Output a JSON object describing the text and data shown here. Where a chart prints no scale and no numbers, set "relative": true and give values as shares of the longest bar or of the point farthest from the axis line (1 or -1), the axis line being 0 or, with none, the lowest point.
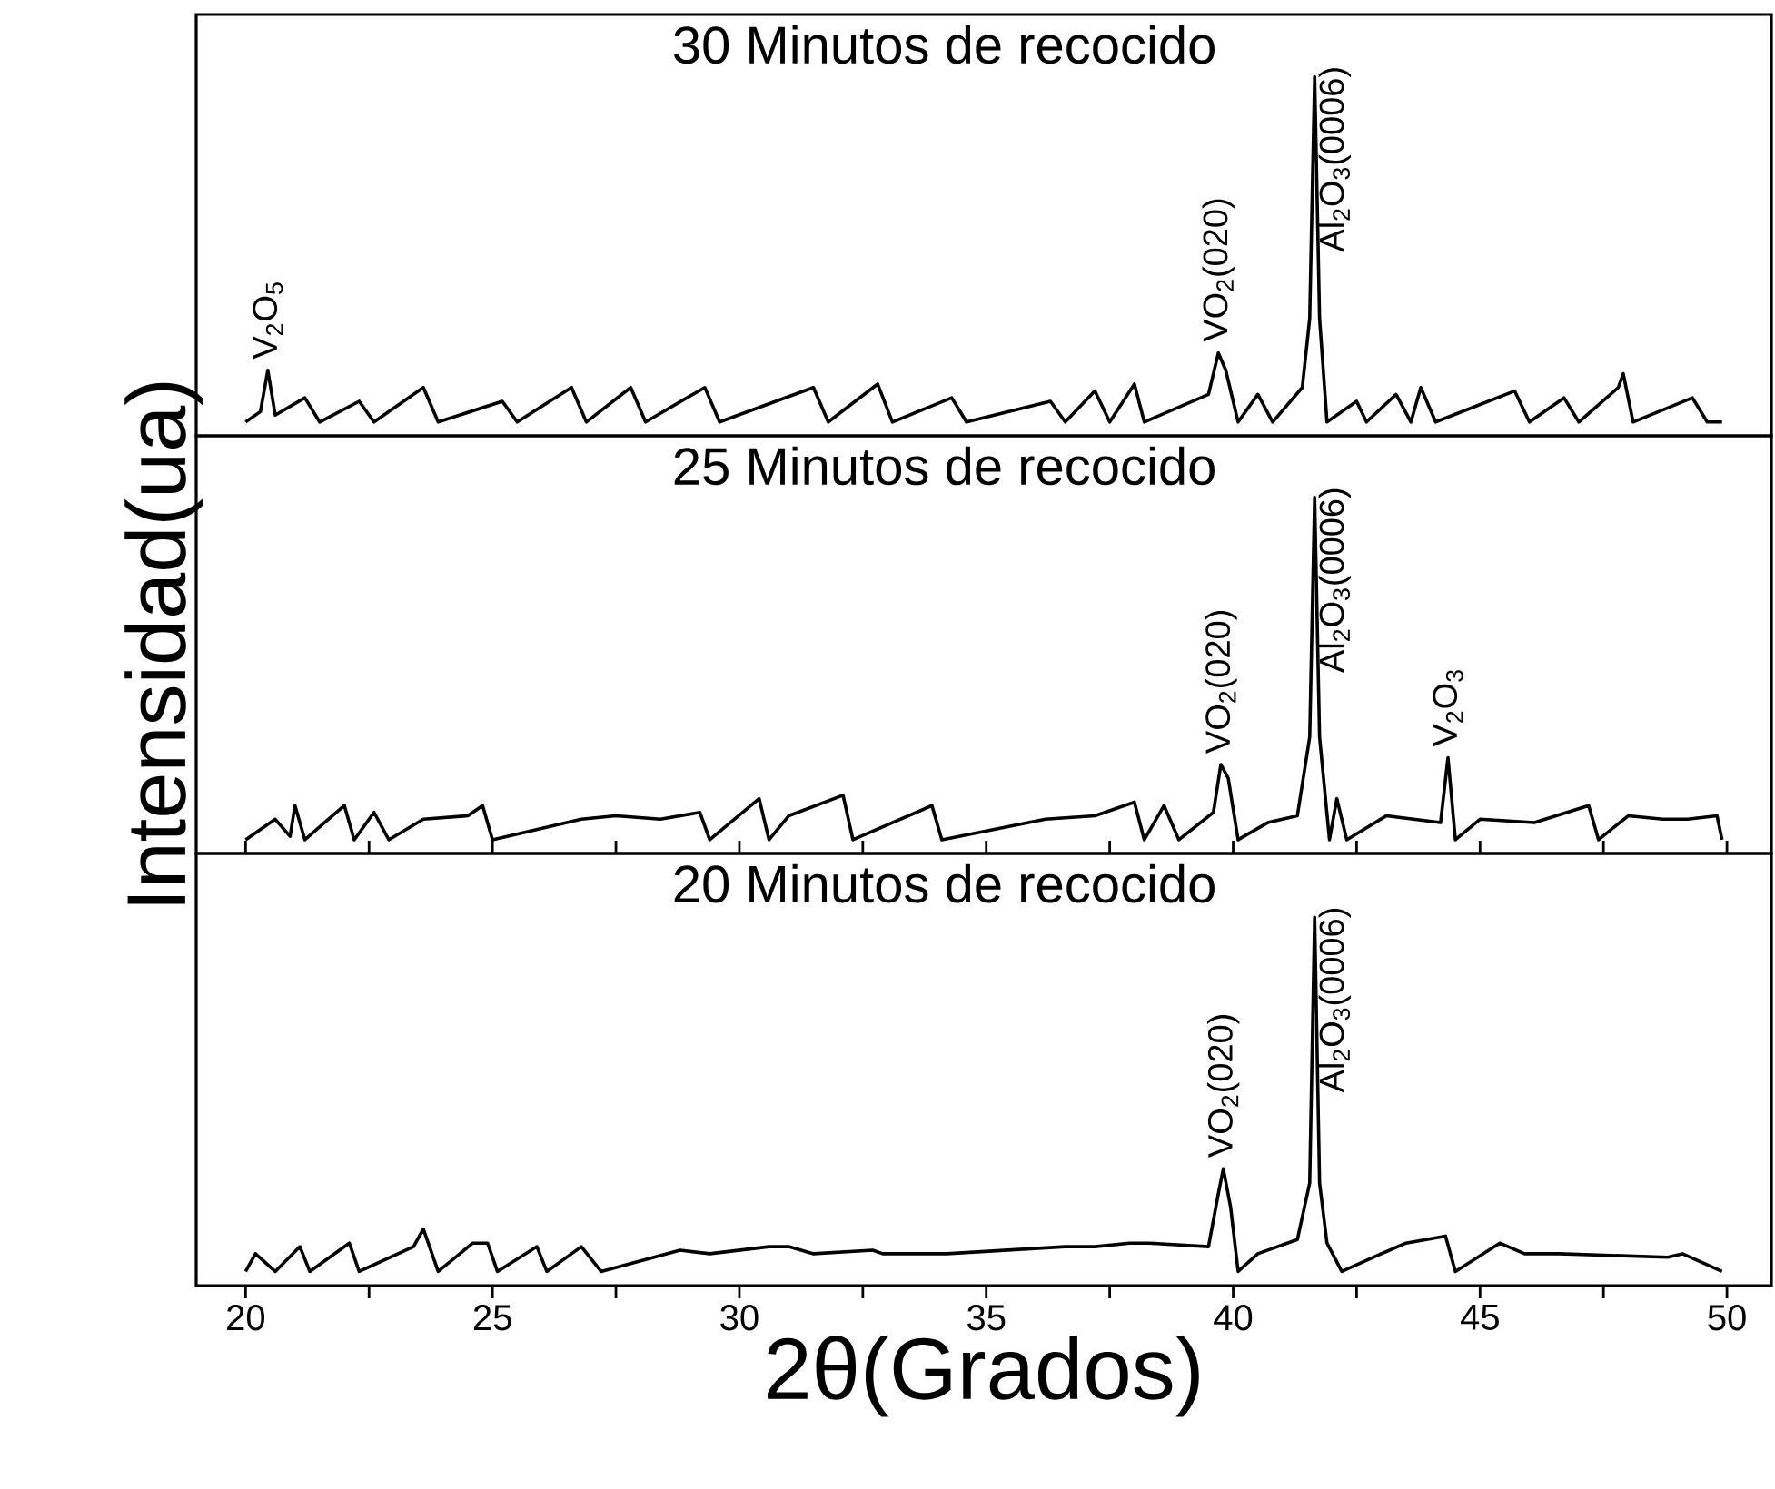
{
  "chart_data": [
    {
      "type": "line",
      "relative": true,
      "title": "30 Minutos de recocido",
      "color": "#000000",
      "xlim": [
        19,
        50.9
      ],
      "tick_labels": false,
      "x": [
        20,
        20.3,
        20.45,
        20.6,
        21.2,
        21.5,
        22.3,
        22.6,
        23.6,
        23.9,
        25.2,
        25.5,
        26.6,
        26.9,
        27.8,
        28.1,
        29.3,
        29.6,
        31.5,
        31.8,
        32.8,
        33.1,
        34.3,
        34.6,
        36.3,
        36.6,
        37.2,
        37.5,
        38.0,
        38.2,
        39.5,
        39.7,
        39.85,
        40.1,
        40.5,
        40.8,
        41.4,
        41.55,
        41.65,
        41.75,
        41.9,
        42.5,
        42.7,
        43.3,
        43.6,
        43.8,
        44.1,
        45.7,
        46.0,
        46.7,
        47.0,
        47.8,
        47.9,
        48.1,
        49.3,
        49.6,
        49.9
      ],
      "values": [
        0,
        0.03,
        0.15,
        0.02,
        0.07,
        0,
        0.06,
        0,
        0.1,
        0,
        0.06,
        0,
        0.1,
        0,
        0.1,
        0,
        0.1,
        0,
        0.1,
        0,
        0.11,
        0,
        0.07,
        0,
        0.06,
        0,
        0.09,
        0,
        0.11,
        0,
        0.08,
        0.2,
        0.15,
        0,
        0.08,
        0,
        0.1,
        0.3,
        1,
        0.3,
        0,
        0.06,
        0,
        0.08,
        0,
        0.1,
        0,
        0.09,
        0,
        0.07,
        0,
        0.1,
        0.14,
        0,
        0.07,
        0,
        0
      ],
      "annotations": [
        {
          "text": "V$_{2}$O$_{5}$",
          "x": 20.45,
          "y": 0.17
        },
        {
          "text": "VO$_{2}$(020)",
          "x": 39.7,
          "y": 0.22
        },
        {
          "text": "Al$_{2}$O$_{3}$(0006)",
          "x": 41.65,
          "y": 1
        }
      ]
    },
    {
      "type": "line",
      "relative": true,
      "title": "25 Minutos de recocido",
      "ylabel": "Intensidad(ua)",
      "color": "#000000",
      "xlim": [
        19,
        50.9
      ],
      "tick_labels": false,
      "x": [
        20,
        20.6,
        20.9,
        21.0,
        21.2,
        22.0,
        22.2,
        22.6,
        22.9,
        23.6,
        24.5,
        24.8,
        25.0,
        26.8,
        27.5,
        28.4,
        29.2,
        29.4,
        30.4,
        30.6,
        31.0,
        32.1,
        32.3,
        33.9,
        34.1,
        36.2,
        37.2,
        38.0,
        38.2,
        38.6,
        38.9,
        39.6,
        39.75,
        39.9,
        40.1,
        40.7,
        41.3,
        41.55,
        41.65,
        41.75,
        41.95,
        42.1,
        42.3,
        43.1,
        44.2,
        44.35,
        44.5,
        45.0,
        46.1,
        47.2,
        47.4,
        48.0,
        48.7,
        49.2,
        49.8,
        49.9
      ],
      "values": [
        0,
        0.06,
        0.01,
        0.1,
        0,
        0.1,
        0,
        0.08,
        0,
        0.06,
        0.07,
        0.1,
        0,
        0.06,
        0.07,
        0.06,
        0.08,
        0,
        0.12,
        0,
        0.07,
        0.13,
        0,
        0.1,
        0,
        0.06,
        0.07,
        0.11,
        0,
        0.1,
        0,
        0.08,
        0.22,
        0.18,
        0,
        0.05,
        0.07,
        0.3,
        1,
        0.3,
        0,
        0.12,
        0,
        0.07,
        0.05,
        0.24,
        0,
        0.06,
        0.05,
        0.1,
        0,
        0.07,
        0.06,
        0.06,
        0.07,
        0
      ],
      "annotations": [
        {
          "text": "VO$_{2}$(020)",
          "x": 39.75,
          "y": 0.24
        },
        {
          "text": "Al$_{2}$O$_{3}$(0006)",
          "x": 41.65,
          "y": 1
        },
        {
          "text": "V$_{2}$O$_{3}$",
          "x": 44.35,
          "y": 0.26
        }
      ]
    },
    {
      "type": "line",
      "relative": true,
      "title": "20 Minutos de recocido",
      "xlabel": "2θ(Grados)",
      "color": "#000000",
      "xlim": [
        19,
        50.9
      ],
      "tick_labels": "x",
      "xticks": [
        20,
        {
          "value": 22.5,
          "label": null
        },
        25,
        {
          "value": 27.5,
          "label": null
        },
        30,
        {
          "value": 32.5,
          "label": null
        },
        35,
        {
          "value": 37.5,
          "label": null
        },
        40,
        {
          "value": 42.5,
          "label": null
        },
        45,
        {
          "value": 47.5,
          "label": null
        },
        50
      ],
      "x": [
        20,
        20.2,
        20.6,
        21.1,
        21.3,
        22.1,
        22.3,
        23.4,
        23.6,
        23.9,
        24.6,
        24.9,
        25.1,
        25.9,
        26.1,
        26.8,
        27.2,
        28.8,
        29.4,
        30.6,
        31.0,
        31.5,
        32.7,
        32.9,
        34.2,
        36.6,
        37.2,
        37.9,
        38.3,
        39.5,
        39.7,
        39.8,
        39.95,
        40.1,
        40.5,
        41.3,
        41.55,
        41.65,
        41.75,
        41.9,
        42.2,
        43.0,
        43.5,
        44.3,
        44.5,
        45.4,
        45.9,
        46.6,
        48.8,
        49.1,
        49.9
      ],
      "values": [
        0,
        0.05,
        0,
        0.07,
        0,
        0.08,
        0,
        0.07,
        0.12,
        0,
        0.08,
        0.08,
        0,
        0.07,
        0,
        0.07,
        0,
        0.06,
        0.05,
        0.07,
        0.07,
        0.05,
        0.06,
        0.05,
        0.05,
        0.07,
        0.07,
        0.08,
        0.08,
        0.07,
        0.22,
        0.29,
        0.18,
        0,
        0.05,
        0.09,
        0.25,
        1,
        0.25,
        0.08,
        0,
        0.05,
        0.08,
        0.1,
        0,
        0.08,
        0.05,
        0.05,
        0.04,
        0.05,
        0
      ],
      "annotations": [
        {
          "text": "VO$_{2}$(020)",
          "x": 39.8,
          "y": 0.31
        },
        {
          "text": "Al$_{2}$O$_{3}$(0006)",
          "x": 41.65,
          "y": 1
        }
      ]
    }
  ]
}
